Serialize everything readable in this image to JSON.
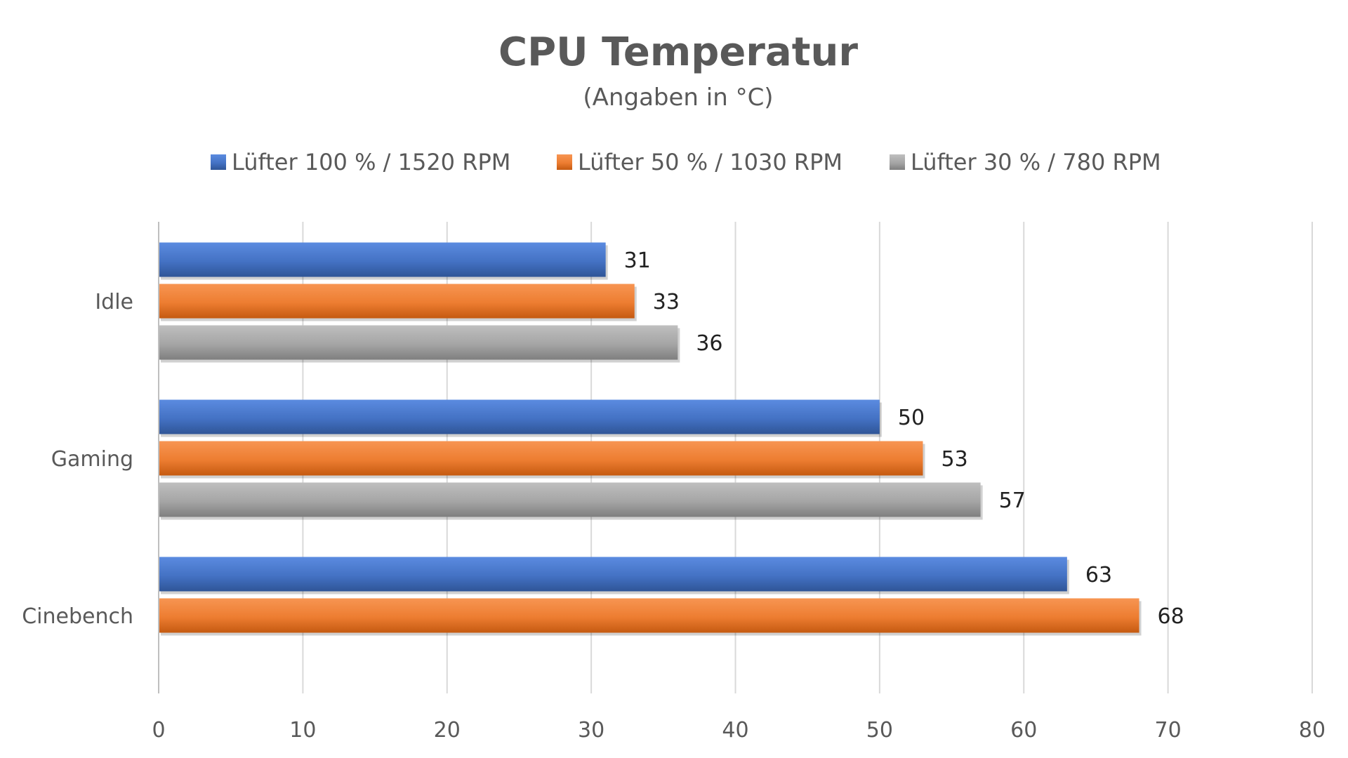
{
  "chart_data": {
    "type": "bar",
    "orientation": "horizontal",
    "title": "CPU Temperatur",
    "subtitle": "(Angaben in °C)",
    "categories": [
      "Idle",
      "Gaming",
      "Cinebench"
    ],
    "series": [
      {
        "name": "Lüfter 100 % / 1520 RPM",
        "color": "#4472C4",
        "colorLight": "#5B8BE0",
        "colorDark": "#2F5597",
        "values": [
          31,
          50,
          63
        ]
      },
      {
        "name": "Lüfter 50 % / 1030 RPM",
        "color": "#ED7D31",
        "colorLight": "#F79552",
        "colorDark": "#C55A11",
        "values": [
          33,
          53,
          68
        ]
      },
      {
        "name": "Lüfter 30 % / 780 RPM",
        "color": "#A5A5A5",
        "colorLight": "#BFBFBF",
        "colorDark": "#7F7F7F",
        "values": [
          36,
          57,
          null
        ]
      }
    ],
    "xlim": [
      0,
      80
    ],
    "xticks": [
      0,
      10,
      20,
      30,
      40,
      50,
      60,
      70,
      80
    ],
    "xlabel": "",
    "ylabel": "",
    "grid": true,
    "legend": "top"
  }
}
